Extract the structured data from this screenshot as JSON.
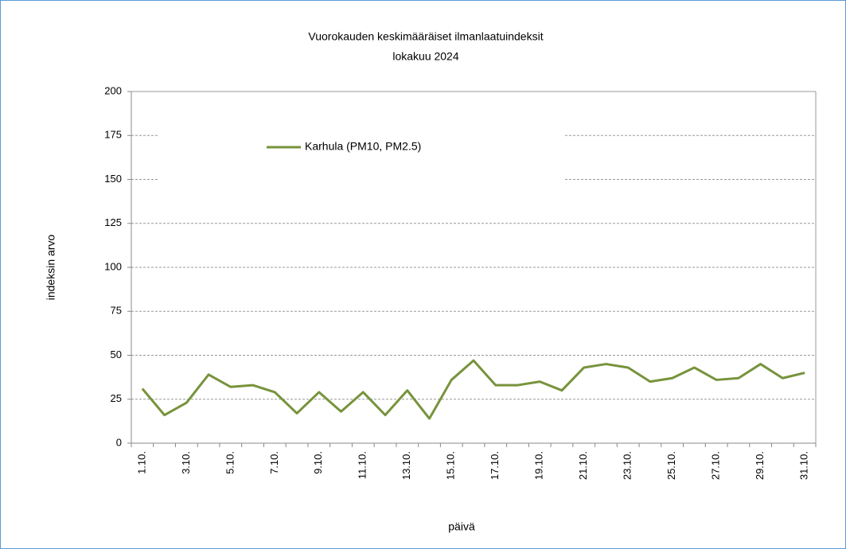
{
  "chart_data": {
    "type": "line",
    "title": "Vuorokauden keskimääräiset ilmanlaatuindeksit",
    "subtitle": "lokakuu 2024",
    "x_label": "päivä",
    "y_label": "indeksin arvo",
    "categories": [
      "1.10.",
      null,
      "3.10.",
      null,
      "5.10.",
      null,
      "7.10.",
      null,
      "9.10.",
      null,
      "11.10.",
      null,
      "13.10.",
      null,
      "15.10.",
      null,
      "17.10.",
      null,
      "19.10.",
      null,
      "21.10.",
      null,
      "23.10.",
      null,
      "25.10.",
      null,
      "27.10.",
      null,
      "29.10.",
      null,
      "31.10."
    ],
    "series": [
      {
        "name": "Karhula (PM10, PM2.5)",
        "color": "#77933c",
        "values": [
          31,
          16,
          23,
          39,
          32,
          33,
          29,
          17,
          29,
          18,
          29,
          16,
          30,
          14,
          36,
          47,
          33,
          33,
          35,
          30,
          43,
          45,
          43,
          35,
          37,
          43,
          36,
          37,
          45,
          37,
          40
        ]
      }
    ],
    "ylim": [
      0,
      200
    ],
    "yticks": [
      0,
      25,
      50,
      75,
      100,
      125,
      150,
      175,
      200
    ],
    "grid": true
  }
}
